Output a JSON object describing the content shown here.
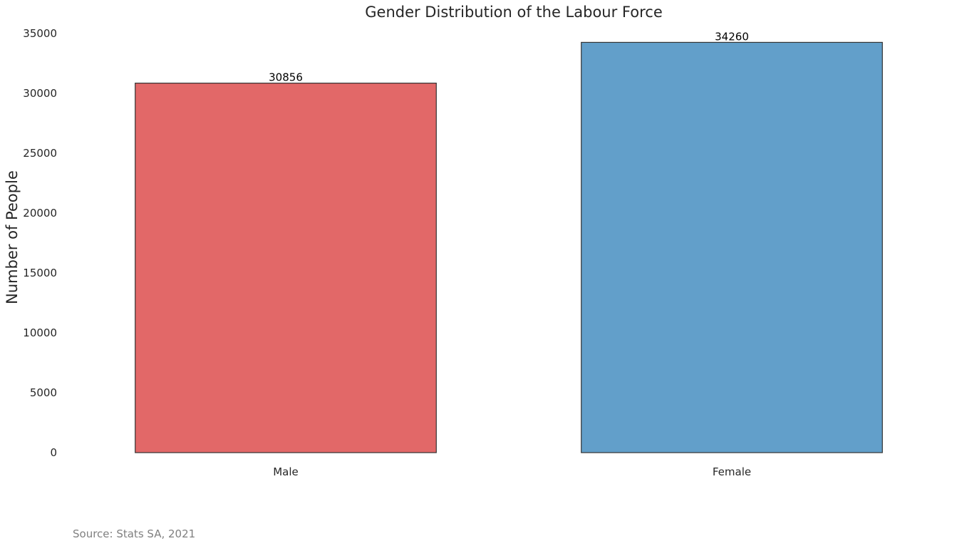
{
  "chart_data": {
    "type": "bar",
    "title": "Gender Distribution of the Labour Force",
    "xlabel": "",
    "ylabel": "Number of People",
    "categories": [
      "Male",
      "Female"
    ],
    "values": [
      30856,
      34260
    ],
    "colors": [
      "#e26868",
      "#629fca"
    ],
    "edge_color": "#333333",
    "ylim": [
      0,
      35000
    ],
    "yticks": [
      0,
      5000,
      10000,
      15000,
      20000,
      25000,
      30000,
      35000
    ],
    "grid": false,
    "legend": "none",
    "data_labels": [
      "30856",
      "34260"
    ]
  },
  "source": "Source: Stats SA, 2021"
}
